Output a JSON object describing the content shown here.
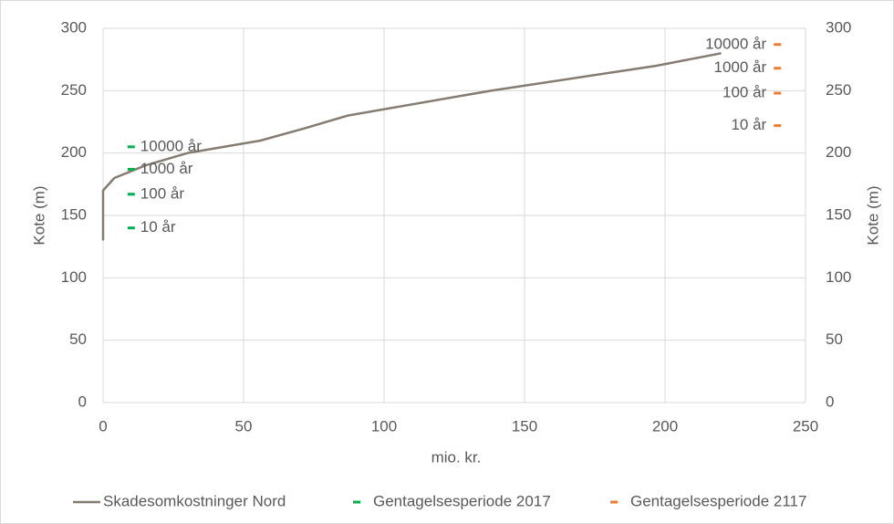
{
  "chart_data": {
    "type": "line",
    "xlabel": "mio. kr.",
    "ylabel": "Kote (m)",
    "y2label": "Kote (m)",
    "xlim": [
      0,
      250
    ],
    "xticks": [
      0,
      50,
      100,
      150,
      200,
      250
    ],
    "ylim": [
      0,
      300
    ],
    "yticks": [
      0,
      50,
      100,
      150,
      200,
      250,
      300
    ],
    "y2lim": [
      0,
      300
    ],
    "y2ticks": [
      0,
      50,
      100,
      150,
      200,
      250,
      300
    ],
    "grid": true,
    "legend": "bottom",
    "series": [
      {
        "name": "Skadesomkostninger Nord",
        "color": "#857b70",
        "style": "line",
        "x": [
          0,
          0,
          4,
          15,
          30,
          56,
          72,
          87,
          138,
          197,
          220
        ],
        "values": [
          130,
          170,
          180,
          190,
          200,
          210,
          220,
          230,
          250,
          270,
          280
        ]
      },
      {
        "name": "Gentagelsesperiode 2017",
        "color": "#00b050",
        "style": "dash",
        "label_side": "right",
        "x": [
          10,
          10,
          10,
          10
        ],
        "values": [
          205,
          187,
          167,
          140
        ],
        "labels": [
          "10000 år",
          "1000 år",
          "100 år",
          "10 år"
        ]
      },
      {
        "name": "Gentagelsesperiode 2117",
        "color": "#ed7d31",
        "style": "dash",
        "label_side": "left",
        "axis": "y2",
        "x": [
          240,
          240,
          240,
          240
        ],
        "values": [
          287,
          268,
          248,
          222
        ],
        "labels": [
          "10000 år",
          "1000 år",
          "100 år",
          "10 år"
        ]
      }
    ]
  }
}
